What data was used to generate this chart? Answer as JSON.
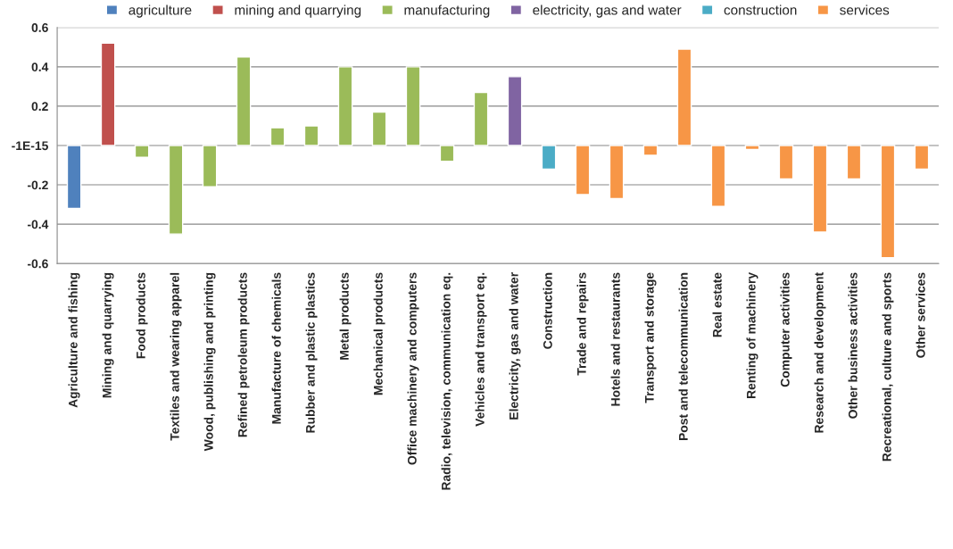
{
  "chart_data": {
    "type": "bar",
    "categories": [
      "Agriculture and fishing",
      "Mining and quarrying",
      "Food products",
      "Textiles and wearing apparel",
      "Wood, publishing and printing",
      "Refined petroleum products",
      "Manufacture of chemicals",
      "Rubber and plastic plastics",
      "Metal products",
      "Mechanical products",
      "Office machinery and computers",
      "Radio, television, communication eq.",
      "Vehicles and transport eq.",
      "Electricity, gas and water",
      "Construction",
      "Trade and repairs",
      "Hotels and restaurants",
      "Transport and storage",
      "Post and telecommunication",
      "Real estate",
      "Renting of machinery",
      "Computer activities",
      "Research and development",
      "Other business activities",
      "Recreational, culture and sports",
      "Other services"
    ],
    "series": [
      {
        "name": "agriculture",
        "color": "#4f81bd",
        "values": [
          -0.32,
          null,
          null,
          null,
          null,
          null,
          null,
          null,
          null,
          null,
          null,
          null,
          null,
          null,
          null,
          null,
          null,
          null,
          null,
          null,
          null,
          null,
          null,
          null,
          null,
          null
        ]
      },
      {
        "name": "mining and quarrying",
        "color": "#c0504d",
        "values": [
          null,
          0.52,
          null,
          null,
          null,
          null,
          null,
          null,
          null,
          null,
          null,
          null,
          null,
          null,
          null,
          null,
          null,
          null,
          null,
          null,
          null,
          null,
          null,
          null,
          null,
          null
        ]
      },
      {
        "name": "manufacturing",
        "color": "#9bbb59",
        "values": [
          null,
          null,
          -0.06,
          -0.45,
          -0.21,
          0.45,
          0.09,
          0.1,
          0.4,
          0.17,
          0.4,
          -0.08,
          0.27,
          null,
          null,
          null,
          null,
          null,
          null,
          null,
          null,
          null,
          null,
          null,
          null,
          null
        ]
      },
      {
        "name": "electricity, gas and water",
        "color": "#8064a2",
        "values": [
          null,
          null,
          null,
          null,
          null,
          null,
          null,
          null,
          null,
          null,
          null,
          null,
          null,
          0.35,
          null,
          null,
          null,
          null,
          null,
          null,
          null,
          null,
          null,
          null,
          null,
          null
        ]
      },
      {
        "name": "construction",
        "color": "#4bacc6",
        "values": [
          null,
          null,
          null,
          null,
          null,
          null,
          null,
          null,
          null,
          null,
          null,
          null,
          null,
          null,
          -0.12,
          null,
          null,
          null,
          null,
          null,
          null,
          null,
          null,
          null,
          null,
          null
        ]
      },
      {
        "name": "services",
        "color": "#f79646",
        "values": [
          null,
          null,
          null,
          null,
          null,
          null,
          null,
          null,
          null,
          null,
          null,
          null,
          null,
          null,
          null,
          -0.25,
          -0.27,
          -0.05,
          0.49,
          -0.31,
          -0.02,
          -0.17,
          -0.44,
          -0.17,
          -0.57,
          -0.12
        ]
      }
    ],
    "ylim": [
      -0.6,
      0.6
    ],
    "yticks": [
      -0.6,
      -0.4,
      -0.2,
      {
        "value": 0,
        "label": "-1E-15"
      },
      0.2,
      0.4,
      0.6
    ],
    "grid": "y",
    "legend": "top"
  }
}
